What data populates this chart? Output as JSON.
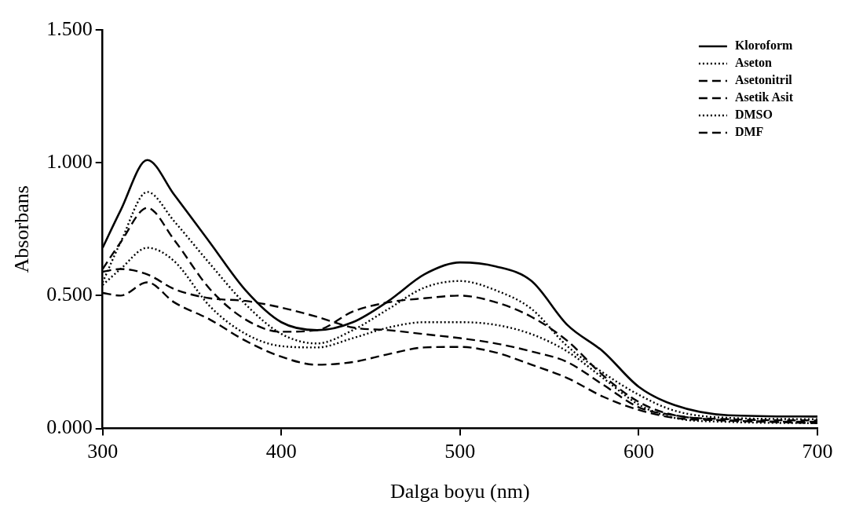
{
  "chart_data": {
    "type": "line",
    "xlabel": "Dalga boyu (nm)",
    "ylabel": "Absorbans",
    "xlim": [
      300,
      700
    ],
    "xticks": [
      300,
      400,
      500,
      600,
      700
    ],
    "ylim": [
      0,
      1.5
    ],
    "yticks": [
      {
        "value": 0,
        "label": "0.000"
      },
      {
        "value": 0.5,
        "label": "0.500"
      },
      {
        "value": 1,
        "label": "1.000"
      },
      {
        "value": 1.5,
        "label": "1.500"
      }
    ],
    "x": [
      300,
      310,
      325,
      340,
      360,
      380,
      400,
      420,
      440,
      460,
      480,
      500,
      520,
      540,
      560,
      580,
      600,
      620,
      650,
      700
    ],
    "series": [
      {
        "name": "Kloroform",
        "color": "#000000",
        "line_style": "solid",
        "values": [
          0.68,
          0.82,
          1.01,
          0.88,
          0.7,
          0.52,
          0.4,
          0.37,
          0.4,
          0.48,
          0.58,
          0.625,
          0.61,
          0.555,
          0.39,
          0.29,
          0.157,
          0.088,
          0.05,
          0.045
        ]
      },
      {
        "name": "Aseton",
        "color": "#000000",
        "line_style": "dotted",
        "values": [
          0.55,
          0.7,
          0.89,
          0.78,
          0.62,
          0.467,
          0.356,
          0.32,
          0.37,
          0.45,
          0.53,
          0.555,
          0.52,
          0.45,
          0.31,
          0.21,
          0.127,
          0.067,
          0.04,
          0.035
        ]
      },
      {
        "name": "Asetonitril",
        "color": "#000000",
        "line_style": "dashed",
        "values": [
          0.59,
          0.6,
          0.58,
          0.525,
          0.49,
          0.48,
          0.455,
          0.42,
          0.38,
          0.37,
          0.355,
          0.34,
          0.32,
          0.29,
          0.25,
          0.165,
          0.08,
          0.05,
          0.03,
          0.025
        ]
      },
      {
        "name": "Asetik Asit",
        "color": "#000000",
        "line_style": "dashed",
        "values": [
          0.51,
          0.5,
          0.55,
          0.475,
          0.41,
          0.33,
          0.27,
          0.24,
          0.25,
          0.28,
          0.305,
          0.307,
          0.286,
          0.24,
          0.19,
          0.12,
          0.07,
          0.04,
          0.03,
          0.02
        ]
      },
      {
        "name": "DMSO",
        "color": "#000000",
        "line_style": "dotted",
        "values": [
          0.54,
          0.6,
          0.68,
          0.63,
          0.46,
          0.356,
          0.31,
          0.305,
          0.34,
          0.38,
          0.4,
          0.4,
          0.39,
          0.355,
          0.29,
          0.19,
          0.09,
          0.04,
          0.025,
          0.02
        ]
      },
      {
        "name": "DMF",
        "color": "#000000",
        "line_style": "dashed",
        "values": [
          0.6,
          0.7,
          0.83,
          0.71,
          0.525,
          0.41,
          0.364,
          0.37,
          0.44,
          0.475,
          0.49,
          0.5,
          0.475,
          0.42,
          0.33,
          0.2,
          0.1,
          0.05,
          0.035,
          0.03
        ]
      }
    ],
    "marker": "none",
    "grid": false,
    "legend": "top right"
  }
}
